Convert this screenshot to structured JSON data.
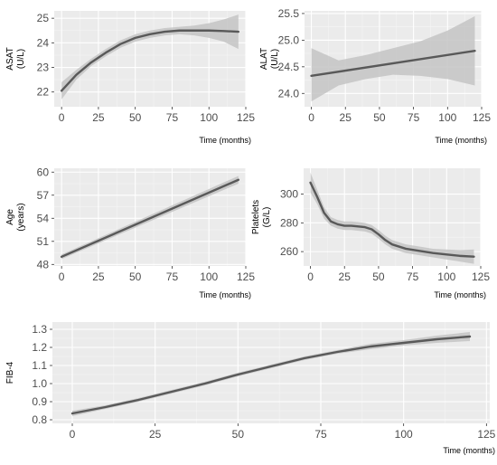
{
  "colors": {
    "panel_bg": "#ebebeb",
    "grid_major": "#ffffff",
    "grid_minor": "#f5f5f5",
    "band": "#c4c4c4",
    "line": "#595959"
  },
  "chart_data": [
    {
      "id": "asat",
      "type": "line",
      "ylabel_line1": "ASAT",
      "ylabel_line2": "(U/L)",
      "xlabel": "Time (months)",
      "xlim": [
        -5,
        125
      ],
      "ylim": [
        21.4,
        25.3
      ],
      "xticks": [
        0,
        25,
        50,
        75,
        100,
        125
      ],
      "yticks": [
        22,
        23,
        24,
        25
      ],
      "x": [
        0,
        10,
        20,
        30,
        40,
        50,
        60,
        70,
        80,
        90,
        100,
        110,
        120
      ],
      "y": [
        22.05,
        22.7,
        23.2,
        23.6,
        23.95,
        24.2,
        24.35,
        24.45,
        24.5,
        24.5,
        24.5,
        24.48,
        24.45
      ],
      "lower": [
        21.7,
        22.5,
        23.05,
        23.45,
        23.8,
        24.05,
        24.2,
        24.3,
        24.35,
        24.3,
        24.2,
        24.05,
        23.75
      ],
      "upper": [
        22.4,
        22.9,
        23.35,
        23.75,
        24.1,
        24.35,
        24.5,
        24.6,
        24.65,
        24.7,
        24.8,
        24.95,
        25.15
      ]
    },
    {
      "id": "alat",
      "type": "line",
      "ylabel_line1": "ALAT",
      "ylabel_line2": "(U/L)",
      "xlabel": "Time (months)",
      "xlim": [
        -5,
        125
      ],
      "ylim": [
        23.75,
        25.55
      ],
      "xticks": [
        0,
        25,
        50,
        75,
        100,
        125
      ],
      "yticks": [
        24.0,
        24.5,
        25.0,
        25.5
      ],
      "ytick_labels": [
        "24.0",
        "24.5",
        "25.0",
        "25.5"
      ],
      "x": [
        0,
        120
      ],
      "y": [
        24.33,
        24.8
      ],
      "lower": [
        23.85,
        24.15
      ],
      "upper": [
        24.85,
        25.45
      ],
      "band_x": [
        0,
        20,
        40,
        60,
        80,
        100,
        120
      ],
      "band_lower": [
        23.85,
        24.15,
        24.27,
        24.35,
        24.33,
        24.27,
        24.15
      ],
      "band_upper": [
        24.85,
        24.62,
        24.72,
        24.85,
        24.98,
        25.18,
        25.45
      ]
    },
    {
      "id": "age",
      "type": "line",
      "ylabel_line1": "Age",
      "ylabel_line2": "(years)",
      "xlabel": "Time (months)",
      "xlim": [
        -5,
        125
      ],
      "ylim": [
        47.8,
        60.5
      ],
      "xticks": [
        0,
        25,
        50,
        75,
        100,
        125
      ],
      "yticks": [
        48,
        51,
        54,
        57,
        60
      ],
      "x": [
        0,
        120
      ],
      "y": [
        49.0,
        59.0
      ],
      "lower": [
        48.7,
        58.5
      ],
      "upper": [
        49.3,
        59.5
      ]
    },
    {
      "id": "platelets",
      "type": "line",
      "ylabel_line1": "Platelets",
      "ylabel_line2": "(G/L)",
      "xlabel": "Time (months)",
      "xlim": [
        -5,
        125
      ],
      "ylim": [
        250,
        318
      ],
      "xticks": [
        0,
        25,
        50,
        75,
        100,
        125
      ],
      "yticks": [
        260,
        280,
        300
      ],
      "x": [
        0,
        5,
        10,
        15,
        20,
        25,
        30,
        35,
        40,
        45,
        50,
        55,
        60,
        65,
        70,
        80,
        90,
        100,
        110,
        120
      ],
      "y": [
        308,
        298,
        287,
        281,
        279,
        278,
        278,
        277.5,
        277,
        275.5,
        272,
        268,
        265,
        263.5,
        262,
        260.5,
        259,
        258,
        257,
        256.5
      ],
      "lower": [
        301,
        293,
        283,
        278,
        276,
        275,
        275,
        274.5,
        274,
        272.5,
        269,
        265,
        262,
        260.5,
        259,
        257.5,
        256,
        254.5,
        253,
        251.5
      ],
      "upper": [
        315,
        303,
        291,
        284,
        282,
        281,
        281,
        280.5,
        280,
        278.5,
        275,
        271,
        268,
        266.5,
        265,
        263.5,
        262,
        261.5,
        261,
        261.5
      ]
    },
    {
      "id": "fib4",
      "type": "line",
      "ylabel_line1": "FIB-4",
      "ylabel_line2": "",
      "xlabel": "Time (months)",
      "xlim": [
        -6,
        126
      ],
      "ylim": [
        0.78,
        1.34
      ],
      "xticks": [
        0,
        25,
        50,
        75,
        100,
        125
      ],
      "yticks": [
        0.8,
        0.9,
        1.0,
        1.1,
        1.2,
        1.3
      ],
      "ytick_labels": [
        "0.8",
        "0.9",
        "1.0",
        "1.1",
        "1.2",
        "1.3"
      ],
      "x": [
        0,
        10,
        20,
        30,
        40,
        50,
        60,
        70,
        80,
        90,
        100,
        110,
        120
      ],
      "y": [
        0.835,
        0.87,
        0.91,
        0.955,
        1.0,
        1.05,
        1.095,
        1.14,
        1.175,
        1.205,
        1.225,
        1.245,
        1.26
      ],
      "lower": [
        0.82,
        0.86,
        0.9,
        0.945,
        0.99,
        1.04,
        1.085,
        1.13,
        1.165,
        1.19,
        1.21,
        1.225,
        1.235
      ],
      "upper": [
        0.85,
        0.88,
        0.92,
        0.965,
        1.01,
        1.06,
        1.105,
        1.15,
        1.185,
        1.22,
        1.24,
        1.265,
        1.285
      ]
    }
  ]
}
